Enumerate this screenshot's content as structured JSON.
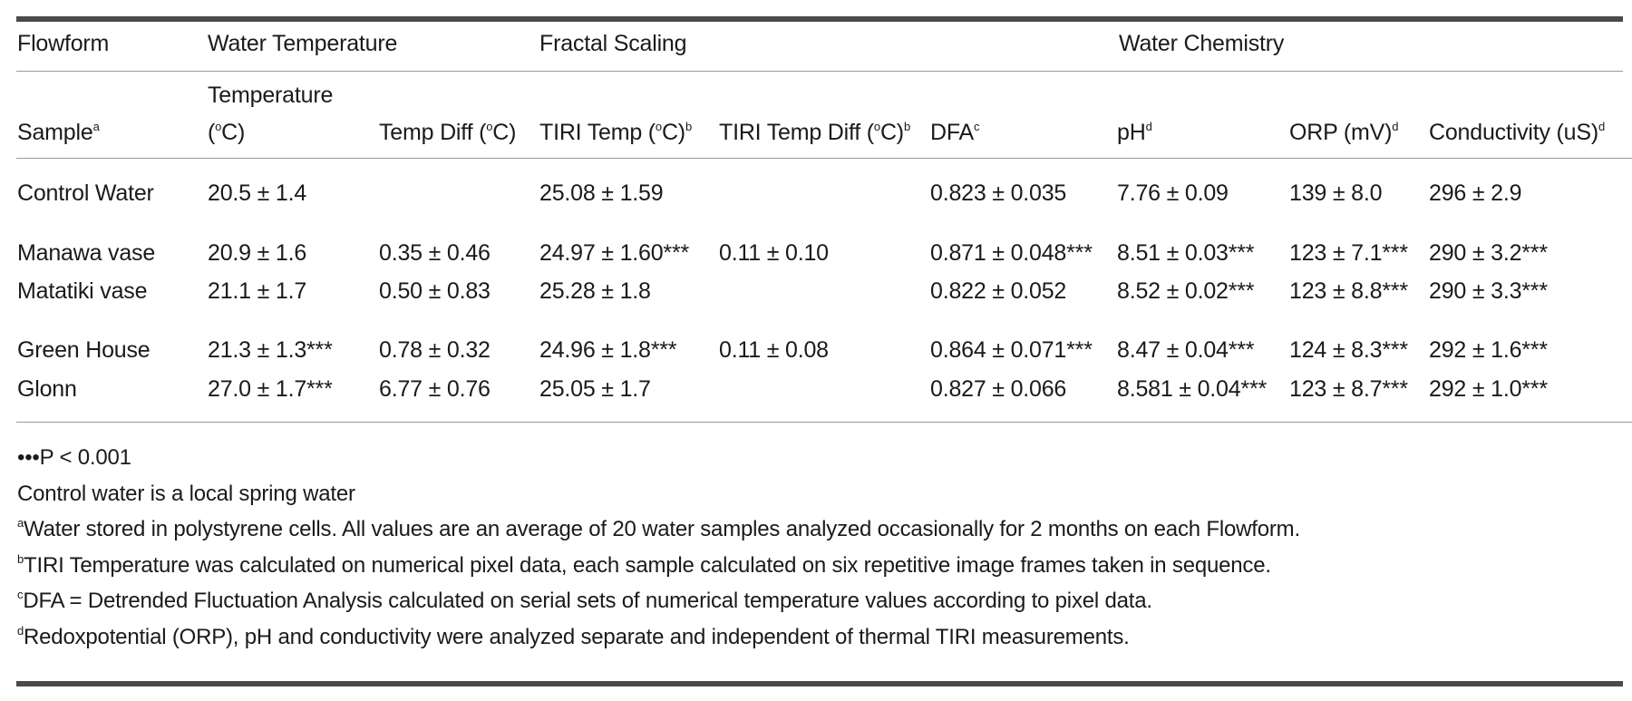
{
  "table": {
    "group_headers": {
      "flowform": "Flowform",
      "water_temperature": "Water Temperature",
      "fractal_scaling": "Fractal Scaling",
      "water_chemistry": "Water Chemistry"
    },
    "columns": {
      "sample": "Sample",
      "sample_sup": "a",
      "temperature_line1": "Temperature",
      "temperature_line2_pre": "(",
      "temperature_deg": "o",
      "temperature_line2_post": "C)",
      "temp_diff_pre": "Temp Diff (",
      "temp_diff_deg": "o",
      "temp_diff_post": "C)",
      "tiri_temp_pre": "TIRI Temp (",
      "tiri_temp_deg": "o",
      "tiri_temp_post": "C)",
      "tiri_temp_sup": "b",
      "tiri_temp_diff_pre": "TIRI Temp Diff (",
      "tiri_temp_diff_deg": "o",
      "tiri_temp_diff_post": "C)",
      "tiri_temp_diff_sup": "b",
      "dfa": "DFA",
      "dfa_sup": "c",
      "ph": "pH",
      "ph_sup": "d",
      "orp": "ORP (mV)",
      "orp_sup": "d",
      "conductivity": "Conductivity (uS)",
      "conductivity_sup": "d"
    },
    "rows": [
      {
        "sample": "Control Water",
        "temperature": "20.5 ± 1.4",
        "temp_diff": "",
        "tiri_temp": "25.08 ± 1.59",
        "tiri_temp_diff": "",
        "dfa": "0.823 ± 0.035",
        "ph": "7.76 ± 0.09",
        "orp": "139 ± 8.0",
        "conductivity": "296 ± 2.9"
      },
      {
        "sample": "Manawa vase",
        "temperature": "20.9 ± 1.6",
        "temp_diff": "0.35 ± 0.46",
        "tiri_temp": "24.97 ± 1.60***",
        "tiri_temp_diff": "0.11 ± 0.10",
        "dfa": "0.871 ± 0.048***",
        "ph": "8.51 ± 0.03***",
        "orp": "123 ± 7.1***",
        "conductivity": "290 ± 3.2***"
      },
      {
        "sample": "Matatiki vase",
        "temperature": "21.1 ± 1.7",
        "temp_diff": "0.50 ± 0.83",
        "tiri_temp": "25.28 ± 1.8",
        "tiri_temp_diff": "",
        "dfa": "0.822 ± 0.052",
        "ph": "8.52 ± 0.02***",
        "orp": "123 ± 8.8***",
        "conductivity": "290 ± 3.3***"
      },
      {
        "sample": "Green House",
        "temperature": "21.3 ± 1.3***",
        "temp_diff": "0.78 ± 0.32",
        "tiri_temp": "24.96 ± 1.8***",
        "tiri_temp_diff": "0.11 ± 0.08",
        "dfa": "0.864 ± 0.071***",
        "ph": "8.47 ± 0.04***",
        "orp": "124 ± 8.3***",
        "conductivity": "292 ± 1.6***"
      },
      {
        "sample": "Glonn",
        "temperature": "27.0 ± 1.7***",
        "temp_diff": "6.77 ± 0.76",
        "tiri_temp": "25.05 ± 1.7",
        "tiri_temp_diff": "",
        "dfa": "0.827 ± 0.066",
        "ph": "8.581 ± 0.04***",
        "orp": "123 ± 8.7***",
        "conductivity": "292 ± 1.0***"
      }
    ]
  },
  "footnotes": {
    "significance": "•••P < 0.001",
    "control": "Control water is a local spring water",
    "a_mark": "a",
    "a_text": "Water stored in polystyrene cells. All values are an average of 20 water samples analyzed occasionally for 2 months on each Flowform.",
    "b_mark": "b",
    "b_text": "TIRI Temperature was calculated on numerical pixel data, each sample calculated on six repetitive image frames taken in sequence.",
    "c_mark": "c",
    "c_text": "DFA = Detrended Fluctuation Analysis calculated on serial sets of numerical temperature values according to pixel data.",
    "d_mark": "d",
    "d_text": "Redoxpotential (ORP), pH and conductivity were analyzed separate and independent of thermal TIRI measurements."
  }
}
